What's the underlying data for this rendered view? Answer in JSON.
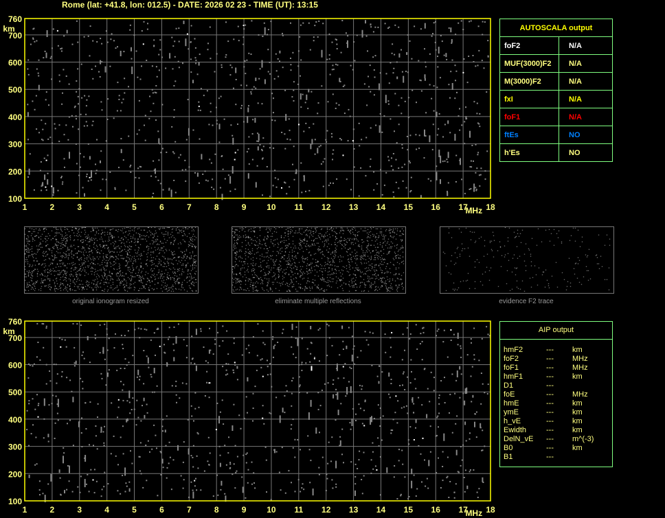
{
  "header": {
    "title": "Rome (lat: +41.8, lon: 012.5) - DATE: 2026 02 23 - TIME (UT): 13:15"
  },
  "chart_data": [
    {
      "type": "scatter",
      "title": "",
      "xlabel": "MHz",
      "ylabel": "km",
      "xlim": [
        1,
        18
      ],
      "ylim": [
        100,
        760
      ],
      "xticks": [
        "1",
        "2",
        "3",
        "4",
        "5",
        "6",
        "7",
        "8",
        "9",
        "10",
        "11",
        "12",
        "13",
        "14",
        "15",
        "16",
        "17",
        "18"
      ],
      "yticks": [
        "100",
        "200",
        "300",
        "400",
        "500",
        "600",
        "700",
        "760"
      ],
      "grid": true,
      "series": []
    },
    {
      "type": "scatter",
      "title": "",
      "xlabel": "MHz",
      "ylabel": "km",
      "xlim": [
        1,
        18
      ],
      "ylim": [
        100,
        760
      ],
      "xticks": [
        "1",
        "2",
        "3",
        "4",
        "5",
        "6",
        "7",
        "8",
        "9",
        "10",
        "11",
        "12",
        "13",
        "14",
        "15",
        "16",
        "17",
        "18"
      ],
      "yticks": [
        "100",
        "200",
        "300",
        "400",
        "500",
        "600",
        "700",
        "760"
      ],
      "grid": true,
      "series": []
    }
  ],
  "thumbnails": [
    {
      "label": "original ionogram resized"
    },
    {
      "label": "eliminate multiple reflections"
    },
    {
      "label": "evidence F2 trace"
    }
  ],
  "autoscala": {
    "title": "AUTOSCALA output",
    "rows": [
      {
        "name": "foF2",
        "value": "N/A",
        "name_color": "#ffffff",
        "value_color": "#ffffff"
      },
      {
        "name": "MUF(3000)F2",
        "value": "N/A",
        "name_color": "#ffff80",
        "value_color": "#ffff80"
      },
      {
        "name": "M(3000)F2",
        "value": "N/A",
        "name_color": "#ffff80",
        "value_color": "#ffff80"
      },
      {
        "name": "fxI",
        "value": "N/A",
        "name_color": "#ffff00",
        "value_color": "#ffff00"
      },
      {
        "name": "foF1",
        "value": "N/A",
        "name_color": "#ff0000",
        "value_color": "#ff0000"
      },
      {
        "name": "ftEs",
        "value": "NO",
        "name_color": "#0080ff",
        "value_color": "#0080ff"
      },
      {
        "name": "h'Es",
        "value": "NO",
        "name_color": "#ffff80",
        "value_color": "#ffff80"
      }
    ]
  },
  "aip": {
    "title": "AIP output",
    "rows": [
      {
        "name": "hmF2",
        "value": "---",
        "unit": "km"
      },
      {
        "name": "foF2",
        "value": "---",
        "unit": "MHz"
      },
      {
        "name": "foF1",
        "value": "---",
        "unit": "MHz"
      },
      {
        "name": "hmF1",
        "value": "---",
        "unit": "km"
      },
      {
        "name": "D1",
        "value": "---",
        "unit": ""
      },
      {
        "name": "foE",
        "value": "---",
        "unit": "MHz"
      },
      {
        "name": "hmE",
        "value": "---",
        "unit": "km"
      },
      {
        "name": "ymE",
        "value": "---",
        "unit": "km"
      },
      {
        "name": "h_vE",
        "value": "---",
        "unit": "km"
      },
      {
        "name": "Ewidth",
        "value": "---",
        "unit": "km"
      },
      {
        "name": "DelN_vE",
        "value": "---",
        "unit": "m^(-3)"
      },
      {
        "name": "B0",
        "value": "---",
        "unit": "km"
      },
      {
        "name": "B1",
        "value": "---",
        "unit": ""
      }
    ]
  }
}
